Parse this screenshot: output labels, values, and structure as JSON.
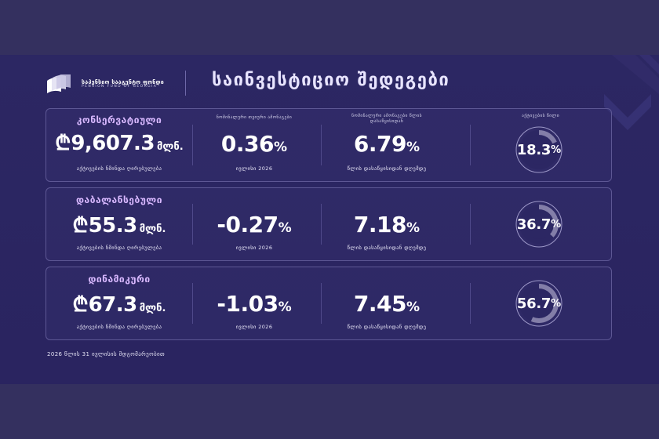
{
  "brand": {
    "logo_georgian": "საპენსიო სააგენტო ფონდი",
    "logo_english": "PENSION FUND OF GEORGIA"
  },
  "page": {
    "title": "საინვესტიციო შედეგები",
    "footnote": "2026 წლის 31 ივლისის მდგომარეობით"
  },
  "column_headers": {
    "monthly_return": "ნომინალური თვიური ამონაგები",
    "inception_return": "ნომინალური ამონაგები წლის დასაწყისიდან",
    "risky_share": "აქტივების წილი"
  },
  "portfolios": [
    {
      "name": "კონსერვატიული",
      "aum_currency": "₾",
      "aum_value": "9,607.3",
      "aum_unit": "მლნ.",
      "aum_caption": "აქტივების ნმინდა ღირებულება",
      "monthly_value": "0.36",
      "monthly_suffix": "%",
      "monthly_caption": "ივლისი 2026",
      "ytd_value": "6.79",
      "ytd_suffix": "%",
      "ytd_caption": "წლის დასაწყისიდან დღემდე",
      "share_value": "18.3",
      "share_suffix": "%",
      "share_fraction": 0.183
    },
    {
      "name": "დაბალანსებული",
      "aum_currency": "₾",
      "aum_value": "55.3",
      "aum_unit": "მლნ.",
      "aum_caption": "აქტივების ნმინდა ღირებულება",
      "monthly_value": "-0.27",
      "monthly_suffix": "%",
      "monthly_caption": "ივლისი 2026",
      "ytd_value": "7.18",
      "ytd_suffix": "%",
      "ytd_caption": "წლის დასაწყისიდან დღემდე",
      "share_value": "36.7",
      "share_suffix": "%",
      "share_fraction": 0.367
    },
    {
      "name": "დინამიკური",
      "aum_currency": "₾",
      "aum_value": "67.3",
      "aum_unit": "მლნ.",
      "aum_caption": "აქტივების ნმინდა ღირებულება",
      "monthly_value": "-1.03",
      "monthly_suffix": "%",
      "monthly_caption": "ივლისი 2026",
      "ytd_value": "7.45",
      "ytd_suffix": "%",
      "ytd_caption": "წლის დასაწყისიდან დღემდე",
      "share_value": "56.7",
      "share_suffix": "%",
      "share_fraction": 0.567
    }
  ],
  "colors": {
    "accent_label": "#d8b8ff",
    "donut_fill": "#ffffff",
    "donut_track": "#b9b5d6"
  }
}
